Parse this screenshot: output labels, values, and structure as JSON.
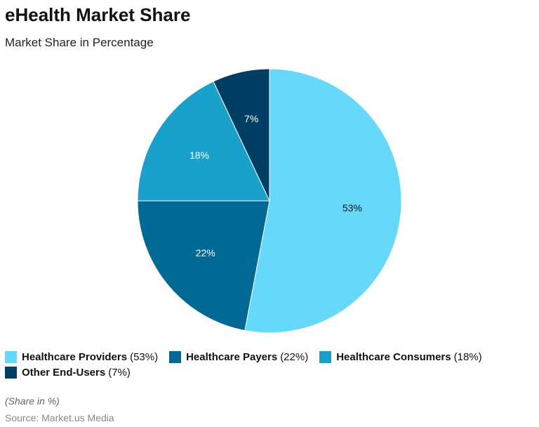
{
  "chart_data": {
    "type": "pie",
    "title": "eHealth Market Share",
    "subtitle": "Market Share in Percentage",
    "categories": [
      "Healthcare Providers",
      "Healthcare Payers",
      "Healthcare Consumers",
      "Other End-Users"
    ],
    "values": [
      53,
      22,
      18,
      7
    ],
    "value_labels": [
      "53%",
      "22%",
      "18%",
      "7%"
    ],
    "legend_value_labels": [
      "(53%)",
      "(22%)",
      "(18%)",
      "(7%)"
    ],
    "colors": [
      "#66d9fb",
      "#006994",
      "#19a1cc",
      "#003f63"
    ],
    "footnote": "(Share in %)",
    "source": "Source: Market.us Media"
  }
}
